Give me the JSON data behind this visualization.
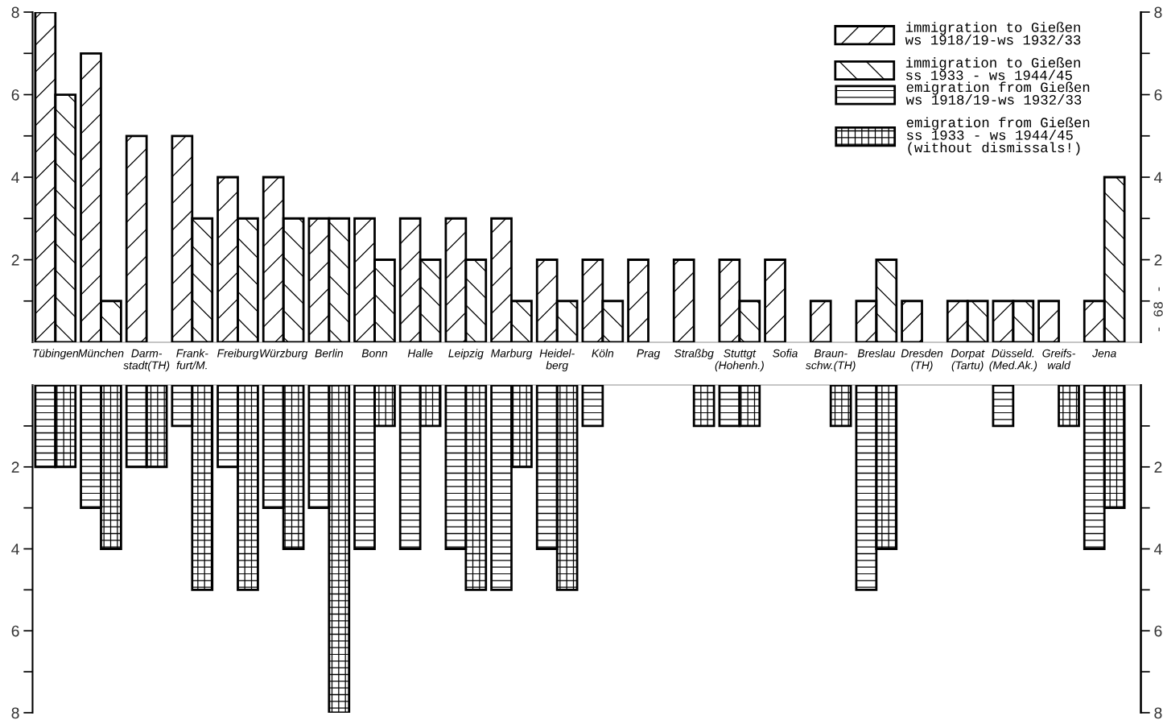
{
  "chart_data": [
    {
      "type": "bar",
      "categories": [
        "Tübingen",
        "München",
        "Darm-\nstadt(TH)",
        "Frank-\nfurt/M.",
        "Freiburg",
        "Würzburg",
        "Berlin",
        "Bonn",
        "Halle",
        "Leipzig",
        "Marburg",
        "Heidel-\nberg",
        "Köln",
        "Prag",
        "Straßbg",
        "Stuttgt\n(Hohenh.)",
        "Sofia",
        "Braun-\nschw.(TH)",
        "Breslau",
        "Dresden\n(TH)",
        "Dorpat\n(Tartu)",
        "Düsseld.\n(Med.Ak.)",
        "Greifs-\nwald",
        "Jena"
      ],
      "series": [
        {
          "name": "immigration to Gießen\nws 1918/19-ws 1932/33",
          "color": "#000000",
          "values": [
            8,
            7,
            5,
            5,
            4,
            4,
            3,
            3,
            3,
            3,
            3,
            2,
            2,
            2,
            2,
            2,
            2,
            1,
            1,
            1,
            1,
            1,
            1,
            1
          ]
        },
        {
          "name": "immigration to Gießen\nss 1933 - ws 1944/45",
          "color": "#000000",
          "values": [
            6,
            1,
            null,
            3,
            3,
            3,
            3,
            2,
            2,
            2,
            1,
            1,
            1,
            null,
            null,
            1,
            null,
            null,
            2,
            null,
            1,
            1,
            null,
            4
          ]
        }
      ],
      "ylim": [
        0,
        8
      ],
      "yticks": [
        {
          "value": 1,
          "label": null
        },
        2,
        {
          "value": 3,
          "label": null
        },
        4,
        {
          "value": 5,
          "label": null
        },
        6,
        {
          "value": 7,
          "label": null
        },
        8
      ],
      "y2lim": [
        0,
        8
      ],
      "y2ticks": [
        {
          "value": 1,
          "label": null
        },
        2,
        {
          "value": 3,
          "label": null
        },
        4,
        {
          "value": 5,
          "label": null
        },
        6,
        {
          "value": 7,
          "label": null
        },
        8
      ],
      "legend": "top right",
      "annotations": [
        "- 68 -"
      ]
    },
    {
      "type": "bar",
      "categories": [
        null,
        null,
        null,
        null,
        null,
        null,
        null,
        null,
        null,
        null,
        null,
        null,
        null,
        null,
        null,
        null,
        null,
        null,
        null,
        null,
        null,
        null,
        null,
        null
      ],
      "series": [
        {
          "name": "emigration from Gießen\nws 1918/19-ws 1932/33",
          "color": "#000000",
          "values": [
            2,
            3,
            2,
            1,
            2,
            3,
            3,
            4,
            4,
            4,
            5,
            4,
            1,
            null,
            null,
            1,
            null,
            null,
            5,
            null,
            null,
            1,
            null,
            4
          ]
        },
        {
          "name": "emigration from Gießen\nss 1933 - ws 1944/45\n(without dismissals!)",
          "color": "#000000",
          "values": [
            2,
            4,
            2,
            5,
            5,
            4,
            8,
            1,
            1,
            5,
            2,
            5,
            null,
            null,
            1,
            1,
            null,
            1,
            4,
            null,
            null,
            null,
            1,
            3
          ]
        }
      ],
      "ylim": [
        8,
        0
      ],
      "yticks": [
        {
          "value": 1,
          "label": null
        },
        2,
        {
          "value": 3,
          "label": null
        },
        4,
        {
          "value": 5,
          "label": null
        },
        6,
        {
          "value": 7,
          "label": null
        },
        8
      ],
      "y2lim": [
        8,
        0
      ],
      "y2ticks": [
        {
          "value": 1,
          "label": null
        },
        2,
        {
          "value": 3,
          "label": null
        },
        4,
        {
          "value": 5,
          "label": null
        },
        6,
        {
          "value": 7,
          "label": null
        },
        8
      ],
      "legend": "top right",
      "tick_labels": "y"
    }
  ]
}
